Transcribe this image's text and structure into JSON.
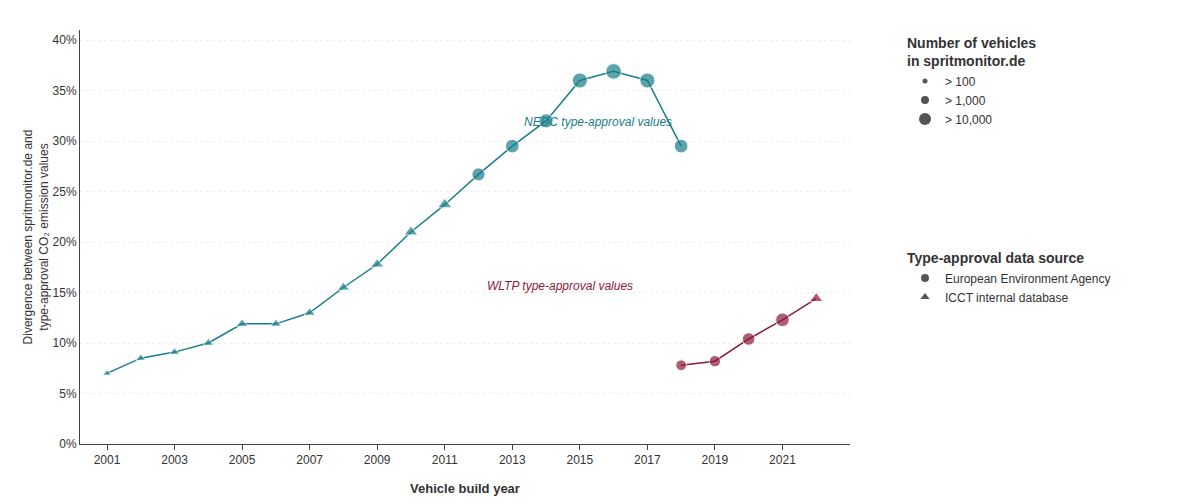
{
  "chart_data": {
    "type": "line",
    "xlabel": "Vehicle build year",
    "ylabel": "Divergence between spritmonitor.de and\ntype-approval CO₂ emission values",
    "series": [
      {
        "label": "NEDC type-approval values",
        "color": "#1a7d8a",
        "x": [
          2001,
          2002,
          2003,
          2004,
          2005,
          2006,
          2007,
          2008,
          2009,
          2010,
          2011,
          2012,
          2013,
          2014,
          2015,
          2016,
          2017,
          2018
        ],
        "values": [
          0.07,
          0.085,
          0.091,
          0.1,
          0.119,
          0.119,
          0.13,
          0.155,
          0.178,
          0.21,
          0.237,
          0.267,
          0.295,
          0.32,
          0.36,
          0.369,
          0.36,
          0.295
        ],
        "markers": [
          "triangle",
          "triangle",
          "triangle",
          "triangle",
          "triangle",
          "triangle",
          "triangle",
          "triangle",
          "triangle",
          "triangle",
          "triangle",
          "circle",
          "circle",
          "circle",
          "circle",
          "circle",
          "circle",
          "circle"
        ]
      },
      {
        "label": "WLTP type-approval values",
        "color": "#8b1a3a",
        "x": [
          2018,
          2019,
          2020,
          2021,
          2022
        ],
        "values": [
          0.078,
          0.082,
          0.104,
          0.123,
          0.144
        ],
        "markers": [
          "circle",
          "circle",
          "circle",
          "circle",
          "triangle"
        ]
      }
    ],
    "legends": [
      {
        "title": "Number of vehicles\nin spritmonitor.de",
        "entries": [
          "> 100",
          "> 1,000",
          "> 10,000"
        ],
        "marker": "circle",
        "color": "#555555"
      },
      {
        "title": "Type-approval data source",
        "entries": [
          "European Environment Agency",
          "ICCT internal database"
        ],
        "markers": [
          "circle",
          "triangle"
        ],
        "color": "#555555"
      }
    ],
    "xlim": [
      2000.2,
      2023.0
    ],
    "xticks": [
      2001,
      2003,
      2005,
      2007,
      2009,
      2011,
      2013,
      2015,
      2017,
      2019,
      2021
    ],
    "ylim": [
      0.0,
      0.41
    ],
    "yticks": [
      {
        "value": 0.0,
        "label": "0%"
      },
      {
        "value": 0.05,
        "label": "5%"
      },
      {
        "value": 0.1,
        "label": "10%"
      },
      {
        "value": 0.15,
        "label": "15%"
      },
      {
        "value": 0.2,
        "label": "20%"
      },
      {
        "value": 0.25,
        "label": "25%"
      },
      {
        "value": 0.3,
        "label": "30%"
      },
      {
        "value": 0.35,
        "label": "35%"
      },
      {
        "value": 0.4,
        "label": "40%"
      }
    ],
    "grid": "y"
  }
}
